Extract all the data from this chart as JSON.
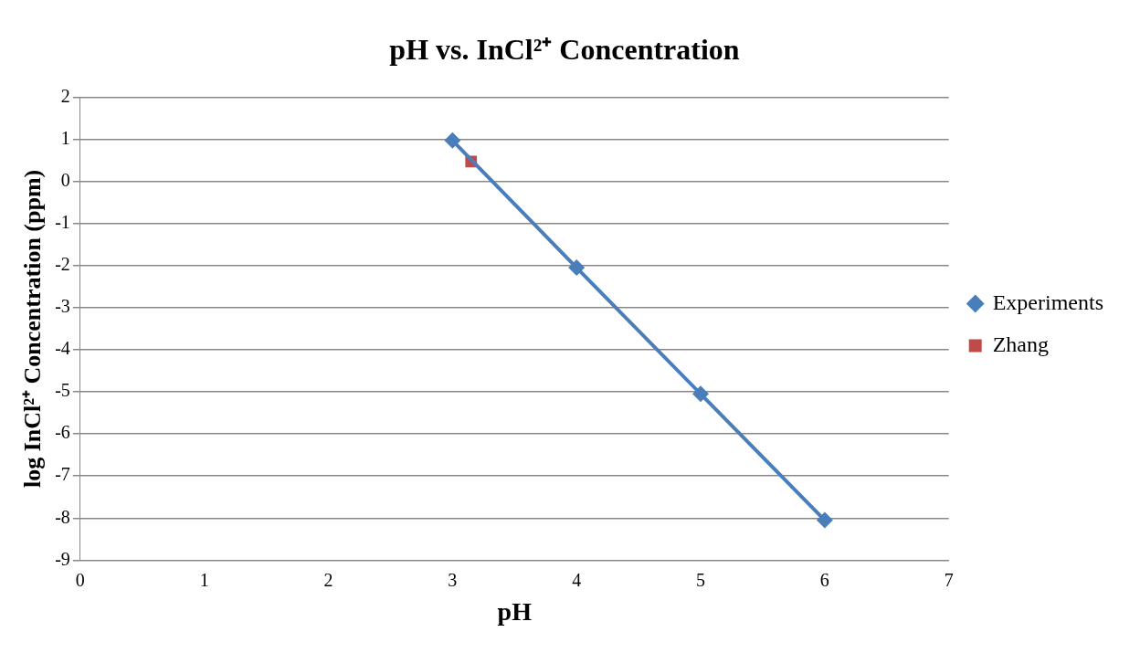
{
  "chart_data": {
    "type": "line",
    "title": "pH vs. InCl²⁺ Concentration",
    "xlabel": "pH",
    "ylabel": "log InCl²⁺ Concentration (ppm)",
    "xlim": [
      0,
      7
    ],
    "xticks": [
      0,
      1,
      2,
      3,
      4,
      5,
      6,
      7
    ],
    "ylim": [
      -9,
      2
    ],
    "yticks": [
      -9,
      -8,
      -7,
      -6,
      -5,
      -4,
      -3,
      -2,
      -1,
      0,
      1,
      2
    ],
    "grid": "y",
    "legend": "right",
    "series": [
      {
        "name": "Experiments",
        "color": "#4a7ebb",
        "marker": "diamond",
        "x": [
          3,
          4,
          5,
          6
        ],
        "values": [
          0.97,
          -2.05,
          -5.05,
          -8.05
        ]
      },
      {
        "name": "Zhang",
        "color": "#be4b48",
        "marker": "square",
        "x": [
          3.15
        ],
        "values": [
          0.47
        ]
      }
    ]
  }
}
